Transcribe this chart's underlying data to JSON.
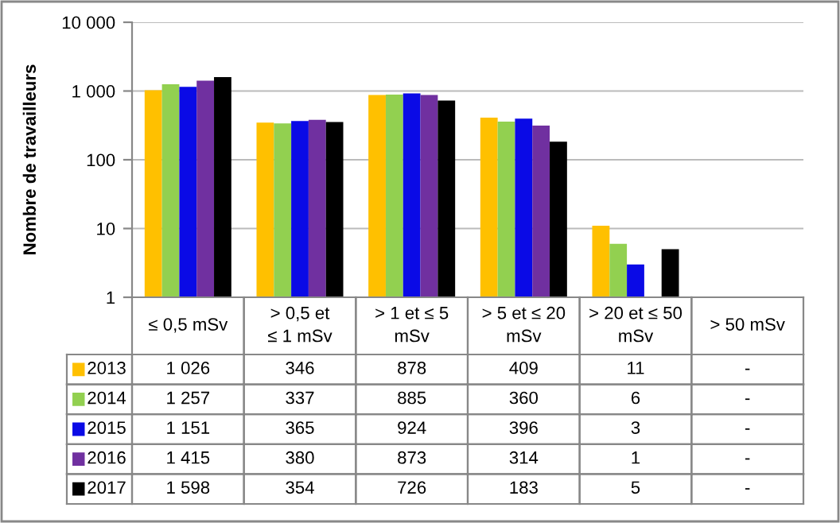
{
  "chart_data": {
    "type": "bar",
    "ylabel": "Nombre de travailleurs",
    "categories": [
      "≤ 0,5 mSv",
      "> 0,5 et\n≤ 1 mSv",
      "> 1 et ≤ 5\nmSv",
      "> 5 et ≤ 20\nmSv",
      "> 20 et ≤ 50\nmSv",
      "> 50 mSv"
    ],
    "series": [
      {
        "name": "2013",
        "color": "#ffc000",
        "values": [
          1026,
          346,
          878,
          409,
          11,
          null
        ],
        "value_labels": [
          "1 026",
          "346",
          "878",
          "409",
          "11",
          "-"
        ]
      },
      {
        "name": "2014",
        "color": "#92d050",
        "values": [
          1257,
          337,
          885,
          360,
          6,
          null
        ],
        "value_labels": [
          "1 257",
          "337",
          "885",
          "360",
          "6",
          "-"
        ]
      },
      {
        "name": "2015",
        "color": "#0a0ae6",
        "values": [
          1151,
          365,
          924,
          396,
          3,
          null
        ],
        "value_labels": [
          "1 151",
          "365",
          "924",
          "396",
          "3",
          "-"
        ]
      },
      {
        "name": "2016",
        "color": "#7030a0",
        "values": [
          1415,
          380,
          873,
          314,
          1,
          null
        ],
        "value_labels": [
          "1 415",
          "380",
          "873",
          "314",
          "1",
          "-"
        ]
      },
      {
        "name": "2017",
        "color": "#000000",
        "values": [
          1598,
          354,
          726,
          183,
          5,
          null
        ],
        "value_labels": [
          "1 598",
          "354",
          "726",
          "183",
          "5",
          "-"
        ]
      }
    ],
    "log": true,
    "ylim": [
      1,
      10000
    ],
    "yticks": [
      1,
      10,
      100,
      {
        "value": 1000,
        "label": "1 000"
      },
      {
        "value": 10000,
        "label": "10 000"
      }
    ],
    "grid": "y",
    "legend": "bottom"
  }
}
